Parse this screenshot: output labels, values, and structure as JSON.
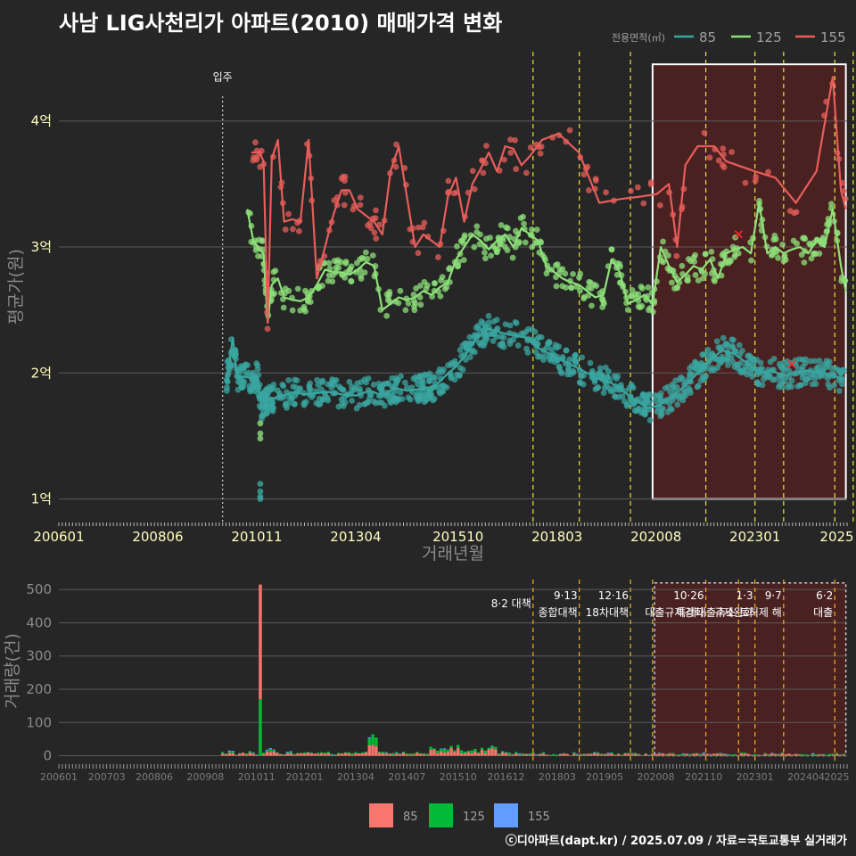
{
  "title": "사남 LIG사천리가 아파트(2010) 매매가격 변화",
  "credit": "ⓒ디아파트(dapt.kr) / 2025.07.09 / 자료=국토교통부 실거래가",
  "colors": {
    "s85": "#3aa6a0",
    "s125": "#8ee07a",
    "s155": "#e85d5a",
    "b85": "#f8766d",
    "b125": "#00ba38",
    "b155": "#619cff",
    "policy": "#e6e633",
    "policy2": "#e6a517",
    "box": "#ffffff",
    "boxFill": "#5a2020"
  },
  "chart_data": [
    {
      "type": "line",
      "title": "사남 LIG사천리가 아파트(2010) 매매가격 변화",
      "xlabel": "거래년월",
      "ylabel": "평균가(원)",
      "x_range": [
        2006.0,
        2025.25
      ],
      "ylim": [
        0.82,
        4.55
      ],
      "yticks": [
        {
          "v": 1,
          "label": "1억"
        },
        {
          "v": 2,
          "label": "2억"
        },
        {
          "v": 3,
          "label": "3억"
        },
        {
          "v": 4,
          "label": "4억"
        }
      ],
      "xticks": [
        {
          "t": 2006.0,
          "label": "200601"
        },
        {
          "t": 2008.4167,
          "label": "200806"
        },
        {
          "t": 2010.8333,
          "label": "201011"
        },
        {
          "t": 2013.25,
          "label": "201304"
        },
        {
          "t": 2015.75,
          "label": "201510"
        },
        {
          "t": 2018.1667,
          "label": "201803"
        },
        {
          "t": 2020.5833,
          "label": "202008"
        },
        {
          "t": 2023.0,
          "label": "202301"
        },
        {
          "t": 2025.0,
          "label": "2025"
        }
      ],
      "legend_title": "전용면적(㎡)",
      "legend": [
        "85",
        "125",
        "155"
      ],
      "move_in": {
        "t": 2010.0,
        "label": "입주"
      },
      "policy_lines": [
        2017.58,
        2018.71,
        2019.96,
        2021.8,
        2023.0,
        2023.7,
        2024.95,
        2025.4
      ],
      "highlight": {
        "t0": 2020.5,
        "t1": 2025.22,
        "y0": 1.0,
        "y1": 4.45
      },
      "series": [
        {
          "name": "85",
          "values": [
            [
              2010.1,
              1.95
            ],
            [
              2010.25,
              2.28
            ],
            [
              2010.35,
              1.96
            ],
            [
              2010.5,
              1.97
            ],
            [
              2010.7,
              1.96
            ],
            [
              2010.85,
              1.97
            ],
            [
              2010.95,
              1.72
            ],
            [
              2011.1,
              1.78
            ],
            [
              2011.25,
              1.8
            ],
            [
              2011.5,
              1.82
            ],
            [
              2011.75,
              1.85
            ],
            [
              2012.0,
              1.83
            ],
            [
              2012.3,
              1.84
            ],
            [
              2012.6,
              1.85
            ],
            [
              2012.9,
              1.83
            ],
            [
              2013.25,
              1.82
            ],
            [
              2013.6,
              1.86
            ],
            [
              2013.9,
              1.82
            ],
            [
              2014.2,
              1.88
            ],
            [
              2014.5,
              1.86
            ],
            [
              2014.8,
              1.87
            ],
            [
              2015.0,
              1.88
            ],
            [
              2015.2,
              1.9
            ],
            [
              2015.45,
              1.98
            ],
            [
              2015.7,
              2.05
            ],
            [
              2015.95,
              2.15
            ],
            [
              2016.2,
              2.28
            ],
            [
              2016.5,
              2.35
            ],
            [
              2016.8,
              2.32
            ],
            [
              2017.1,
              2.3
            ],
            [
              2017.4,
              2.28
            ],
            [
              2017.7,
              2.2
            ],
            [
              2018.0,
              2.15
            ],
            [
              2018.3,
              2.1
            ],
            [
              2018.6,
              2.05
            ],
            [
              2018.9,
              2.0
            ],
            [
              2019.2,
              1.95
            ],
            [
              2019.5,
              1.92
            ],
            [
              2019.8,
              1.85
            ],
            [
              2020.1,
              1.78
            ],
            [
              2020.4,
              1.72
            ],
            [
              2020.7,
              1.75
            ],
            [
              2021.0,
              1.82
            ],
            [
              2021.3,
              1.9
            ],
            [
              2021.6,
              2.0
            ],
            [
              2021.9,
              2.1
            ],
            [
              2022.2,
              2.18
            ],
            [
              2022.5,
              2.15
            ],
            [
              2022.8,
              2.08
            ],
            [
              2023.1,
              2.0
            ],
            [
              2023.4,
              2.02
            ],
            [
              2023.7,
              1.98
            ],
            [
              2024.0,
              2.0
            ],
            [
              2024.3,
              2.02
            ],
            [
              2024.6,
              2.0
            ],
            [
              2024.9,
              1.98
            ],
            [
              2025.2,
              1.95
            ]
          ]
        },
        {
          "name": "125",
          "values": [
            [
              2010.6,
              3.3
            ],
            [
              2010.75,
              3.05
            ],
            [
              2010.9,
              2.98
            ],
            [
              2011.0,
              2.95
            ],
            [
              2011.1,
              2.4
            ],
            [
              2011.2,
              2.7
            ],
            [
              2011.35,
              2.75
            ],
            [
              2011.5,
              2.6
            ],
            [
              2011.7,
              2.58
            ],
            [
              2011.9,
              2.57
            ],
            [
              2012.1,
              2.6
            ],
            [
              2012.3,
              2.7
            ],
            [
              2012.5,
              2.82
            ],
            [
              2012.7,
              2.8
            ],
            [
              2012.9,
              2.8
            ],
            [
              2013.1,
              2.78
            ],
            [
              2013.3,
              2.82
            ],
            [
              2013.5,
              2.88
            ],
            [
              2013.7,
              2.85
            ],
            [
              2013.9,
              2.5
            ],
            [
              2014.1,
              2.55
            ],
            [
              2014.3,
              2.6
            ],
            [
              2014.5,
              2.58
            ],
            [
              2014.7,
              2.6
            ],
            [
              2014.9,
              2.65
            ],
            [
              2015.1,
              2.62
            ],
            [
              2015.3,
              2.68
            ],
            [
              2015.5,
              2.72
            ],
            [
              2015.7,
              2.9
            ],
            [
              2015.9,
              3.0
            ],
            [
              2016.1,
              3.1
            ],
            [
              2016.3,
              3.05
            ],
            [
              2016.5,
              2.98
            ],
            [
              2016.7,
              3.05
            ],
            [
              2016.9,
              3.1
            ],
            [
              2017.1,
              3.0
            ],
            [
              2017.3,
              3.15
            ],
            [
              2017.5,
              3.1
            ],
            [
              2017.7,
              3.05
            ],
            [
              2017.9,
              2.85
            ],
            [
              2018.1,
              2.8
            ],
            [
              2018.3,
              2.75
            ],
            [
              2018.5,
              2.72
            ],
            [
              2018.7,
              2.7
            ],
            [
              2018.9,
              2.65
            ],
            [
              2019.1,
              2.6
            ],
            [
              2019.3,
              2.62
            ],
            [
              2019.5,
              2.9
            ],
            [
              2019.7,
              2.8
            ],
            [
              2019.9,
              2.55
            ],
            [
              2020.1,
              2.58
            ],
            [
              2020.3,
              2.62
            ],
            [
              2020.5,
              2.55
            ],
            [
              2020.7,
              3.0
            ],
            [
              2020.9,
              2.85
            ],
            [
              2021.1,
              2.72
            ],
            [
              2021.3,
              2.78
            ],
            [
              2021.5,
              2.85
            ],
            [
              2021.7,
              2.82
            ],
            [
              2021.9,
              2.9
            ],
            [
              2022.1,
              2.75
            ],
            [
              2022.3,
              2.95
            ],
            [
              2022.5,
              2.98
            ],
            [
              2022.7,
              3.0
            ],
            [
              2022.9,
              2.95
            ],
            [
              2023.1,
              3.35
            ],
            [
              2023.3,
              2.95
            ],
            [
              2023.5,
              3.0
            ],
            [
              2023.7,
              2.95
            ],
            [
              2023.9,
              2.98
            ],
            [
              2024.1,
              3.0
            ],
            [
              2024.3,
              2.95
            ],
            [
              2024.5,
              3.05
            ],
            [
              2024.7,
              3.0
            ],
            [
              2024.9,
              3.3
            ],
            [
              2025.1,
              2.85
            ],
            [
              2025.22,
              2.65
            ]
          ]
        },
        {
          "name": "155",
          "values": [
            [
              2010.7,
              3.75
            ],
            [
              2010.9,
              3.75
            ],
            [
              2011.0,
              3.68
            ],
            [
              2011.1,
              2.4
            ],
            [
              2011.2,
              3.7
            ],
            [
              2011.35,
              3.85
            ],
            [
              2011.5,
              3.2
            ],
            [
              2011.7,
              3.22
            ],
            [
              2011.9,
              3.2
            ],
            [
              2012.1,
              3.85
            ],
            [
              2012.3,
              2.75
            ],
            [
              2012.5,
              3.0
            ],
            [
              2012.7,
              3.25
            ],
            [
              2012.9,
              3.45
            ],
            [
              2013.1,
              3.45
            ],
            [
              2013.3,
              3.3
            ],
            [
              2013.5,
              3.25
            ],
            [
              2013.7,
              3.2
            ],
            [
              2013.9,
              3.1
            ],
            [
              2014.1,
              3.6
            ],
            [
              2014.3,
              3.8
            ],
            [
              2014.5,
              3.4
            ],
            [
              2014.7,
              3.0
            ],
            [
              2014.9,
              3.1
            ],
            [
              2015.1,
              3.05
            ],
            [
              2015.3,
              3.0
            ],
            [
              2015.5,
              3.4
            ],
            [
              2015.7,
              3.55
            ],
            [
              2015.9,
              3.2
            ],
            [
              2016.1,
              3.5
            ],
            [
              2016.3,
              3.62
            ],
            [
              2016.5,
              3.75
            ],
            [
              2016.7,
              3.6
            ],
            [
              2016.9,
              3.8
            ],
            [
              2017.1,
              3.78
            ],
            [
              2017.3,
              3.65
            ],
            [
              2017.5,
              3.72
            ],
            [
              2017.8,
              3.85
            ],
            [
              2018.2,
              3.9
            ],
            [
              2018.7,
              3.75
            ],
            [
              2019.2,
              3.35
            ],
            [
              2019.7,
              3.38
            ],
            [
              2020.2,
              3.4
            ],
            [
              2020.6,
              3.42
            ],
            [
              2020.9,
              3.5
            ],
            [
              2021.1,
              3.0
            ],
            [
              2021.3,
              3.65
            ],
            [
              2021.6,
              3.8
            ],
            [
              2022.0,
              3.8
            ],
            [
              2022.3,
              3.68
            ],
            [
              2023.0,
              3.6
            ],
            [
              2023.5,
              3.55
            ],
            [
              2024.0,
              3.35
            ],
            [
              2024.5,
              3.6
            ],
            [
              2024.9,
              4.35
            ],
            [
              2025.1,
              3.45
            ],
            [
              2025.22,
              3.3
            ]
          ]
        }
      ]
    },
    {
      "type": "bar",
      "ylabel": "거래량(건)",
      "x_range": [
        2006.0,
        2025.25
      ],
      "ylim": [
        -20,
        530
      ],
      "yticks": [
        0,
        100,
        200,
        300,
        400,
        500
      ],
      "xticks": [
        {
          "t": 2006.0,
          "label": "200601"
        },
        {
          "t": 2007.17,
          "label": "200703"
        },
        {
          "t": 2008.33,
          "label": "200806"
        },
        {
          "t": 2009.58,
          "label": "200908"
        },
        {
          "t": 2010.83,
          "label": "201011"
        },
        {
          "t": 2012.0,
          "label": "201201"
        },
        {
          "t": 2013.25,
          "label": "201304"
        },
        {
          "t": 2014.5,
          "label": "201407"
        },
        {
          "t": 2015.75,
          "label": "201510"
        },
        {
          "t": 2016.92,
          "label": "201612"
        },
        {
          "t": 2018.17,
          "label": "201803"
        },
        {
          "t": 2019.33,
          "label": "201905"
        },
        {
          "t": 2020.58,
          "label": "202008"
        },
        {
          "t": 2021.75,
          "label": "202110"
        },
        {
          "t": 2023.0,
          "label": "202301"
        },
        {
          "t": 2024.25,
          "label": "202404"
        },
        {
          "t": 2025.0,
          "label": "2025"
        }
      ],
      "legend": [
        "85",
        "125",
        "155"
      ],
      "spike": {
        "t": 2010.92,
        "values": [
          345,
          170,
          0
        ]
      },
      "policy_lines": [
        2017.58,
        2018.71,
        2019.96,
        2020.5,
        2021.8,
        2022.6,
        2023.0,
        2023.7,
        2024.95
      ],
      "highlight": {
        "t0": 2020.55,
        "t1": 2025.22,
        "v0": 0,
        "v1": 520
      },
      "annotations": [
        {
          "t": 2017.58,
          "line1": "8·2 대책",
          "line2": ""
        },
        {
          "t": 2018.71,
          "line1": "9·13",
          "line2": "종합대책"
        },
        {
          "t": 2019.96,
          "line1": "12·16",
          "line2": "18차대책"
        },
        {
          "t": 2021.8,
          "line1": "10·26",
          "line2": "대출규제강화"
        },
        {
          "t": 2023.0,
          "line1": "1·3",
          "line2": "규제완화"
        },
        {
          "t": 2023.7,
          "line1": "9·7",
          "line2": "특례대출축소 토허제 해"
        },
        {
          "t": 2024.95,
          "line1": "6·2",
          "line2": "대출"
        }
      ]
    }
  ]
}
